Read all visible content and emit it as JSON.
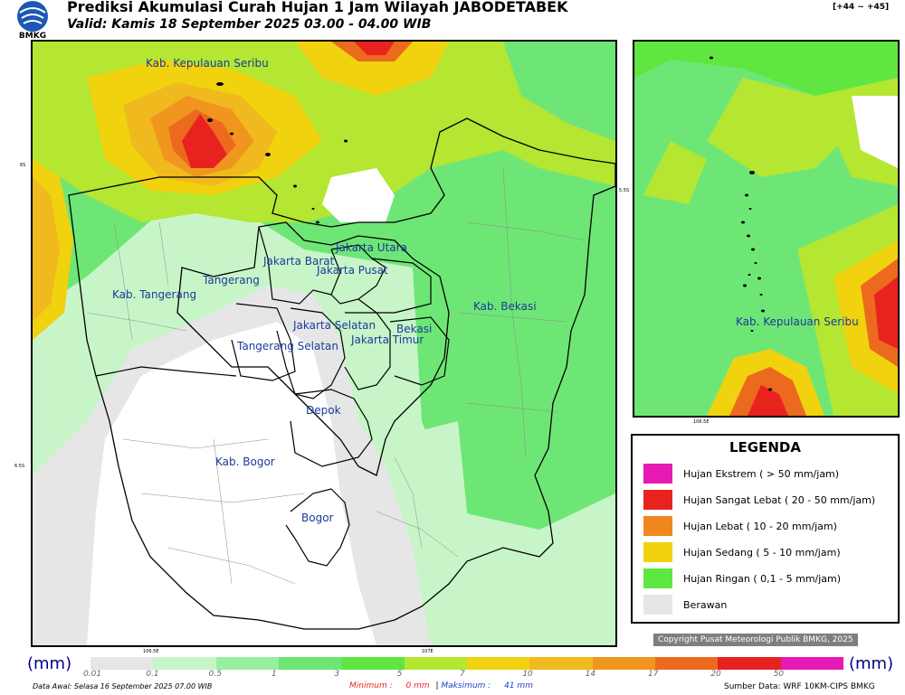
{
  "header": {
    "title": "Prediksi Akumulasi Curah Hujan 1 Jam Wilayah JABODETABEK",
    "subtitle": "Valid: Kamis 18 September 2025 03.00 - 04.00 WIB",
    "lead_time": "[+44 ~ +45]",
    "logo_text": "BMKG"
  },
  "map": {
    "region_labels": [
      "Kab. Kepulauan Seribu",
      "Jakarta Utara",
      "Jakarta Barat",
      "Jakarta Pusat",
      "Tangerang",
      "Kab. Tangerang",
      "Jakarta Selatan",
      "Jakarta Timur",
      "Bekasi",
      "Kab. Bekasi",
      "Tangerang Selatan",
      "Depok",
      "Kab. Bogor",
      "Bogor"
    ],
    "coord_labels": {
      "lat_6s": "6S",
      "lat_65s": "6.5S",
      "lon_1065": "106.5E",
      "lon_107": "107E",
      "inset_lat": "5.5S",
      "inset_lon": "106.5E"
    },
    "inset_label": "Kab. Kepulauan Seribu"
  },
  "legend": {
    "title": "LEGENDA",
    "items": [
      {
        "label": "Hujan Ekstrem ( > 50 mm/jam)",
        "color": "#e619b4"
      },
      {
        "label": "Hujan Sangat Lebat ( 20 - 50 mm/jam)",
        "color": "#e8231f"
      },
      {
        "label": "Hujan Lebat ( 10 - 20 mm/jam)",
        "color": "#f0861e"
      },
      {
        "label": "Hujan Sedang ( 5 - 10 mm/jam)",
        "color": "#f0d20f"
      },
      {
        "label": "Hujan Ringan ( 0,1 - 5 mm/jam)",
        "color": "#5fe641"
      },
      {
        "label": "Berawan",
        "color": "#e6e6e6"
      }
    ]
  },
  "copyright": "Copyright Pusat Meteorologi Publik BMKG, 2025",
  "colorbar": {
    "unit": "(mm)",
    "ticks": [
      "0.01",
      "0.1",
      "0.5",
      "1",
      "3",
      "5",
      "7",
      "10",
      "14",
      "17",
      "20",
      "50"
    ],
    "colors": [
      "#e6e6e6",
      "#c8f5c8",
      "#9aeea0",
      "#6ee676",
      "#5fe641",
      "#b4e632",
      "#f0d20f",
      "#f0b91e",
      "#f0961e",
      "#ec6a1e",
      "#e8231f",
      "#e619b4"
    ]
  },
  "footer": {
    "data_awal": "Data Awal: Selasa 16 September 2025 07.00 WIB",
    "minimum_label": "Minimum :",
    "minimum_value": "0 mm",
    "separator": "|",
    "maximum_label": "Maksimum :",
    "maximum_value": "41 mm",
    "source": "Sumber Data: WRF 10KM-CIPS BMKG"
  }
}
